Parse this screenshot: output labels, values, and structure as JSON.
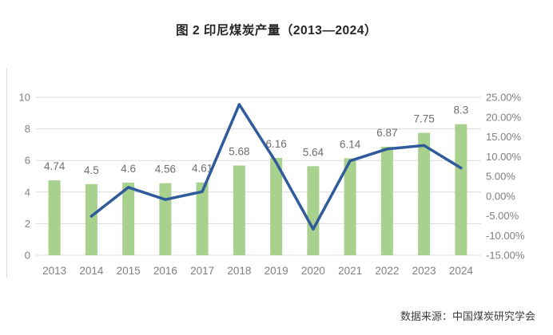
{
  "header": {
    "title": "图 2 印尼煤炭产量（2013—2024）"
  },
  "footer": {
    "source": "数据来源：中国煤炭研究学会"
  },
  "colors": {
    "bar": "#A9D18E",
    "line": "#2F5B9D",
    "grid": "#D9D9D9",
    "frame": "#D9D9D9",
    "axis_text": "#808080",
    "label_text": "#6E6E6E",
    "title_text": "#262626",
    "source_text": "#3F3F3F"
  },
  "chart_data": {
    "type": "bar",
    "title": "图 2 印尼煤炭产量（2013—2024）",
    "categories": [
      "2013",
      "2014",
      "2015",
      "2016",
      "2017",
      "2018",
      "2019",
      "2020",
      "2021",
      "2022",
      "2023",
      "2024"
    ],
    "series": [
      {
        "name": "bar-series-production",
        "type": "bar",
        "axis": "left",
        "values": [
          4.74,
          4.5,
          4.6,
          4.56,
          4.61,
          5.68,
          6.16,
          5.64,
          6.14,
          6.87,
          7.75,
          8.3
        ],
        "labels": [
          "4.74",
          "4.5",
          "4.6",
          "4.56",
          "4.61",
          "5.68",
          "6.16",
          "5.64",
          "6.14",
          "6.87",
          "7.75",
          "8.3"
        ]
      },
      {
        "name": "line-series-growth-rate",
        "type": "line",
        "axis": "right",
        "values": [
          null,
          -5.1,
          2.2,
          -0.9,
          1.1,
          23.2,
          8.5,
          -8.4,
          8.9,
          11.9,
          12.8,
          7.1
        ]
      }
    ],
    "left_axis": {
      "min": 0,
      "max": 10,
      "ticks": [
        "0",
        "2",
        "4",
        "6",
        "8",
        "10"
      ]
    },
    "right_axis": {
      "min": -15,
      "max": 25,
      "ticks": [
        "25.00%",
        "20.00%",
        "15.00%",
        "10.00%",
        "5.00%",
        "0.00%",
        "-5.00%",
        "-10.00%",
        "-15.00%"
      ]
    },
    "grid": true,
    "legend": "none",
    "xlabel": "",
    "ylabel": ""
  }
}
